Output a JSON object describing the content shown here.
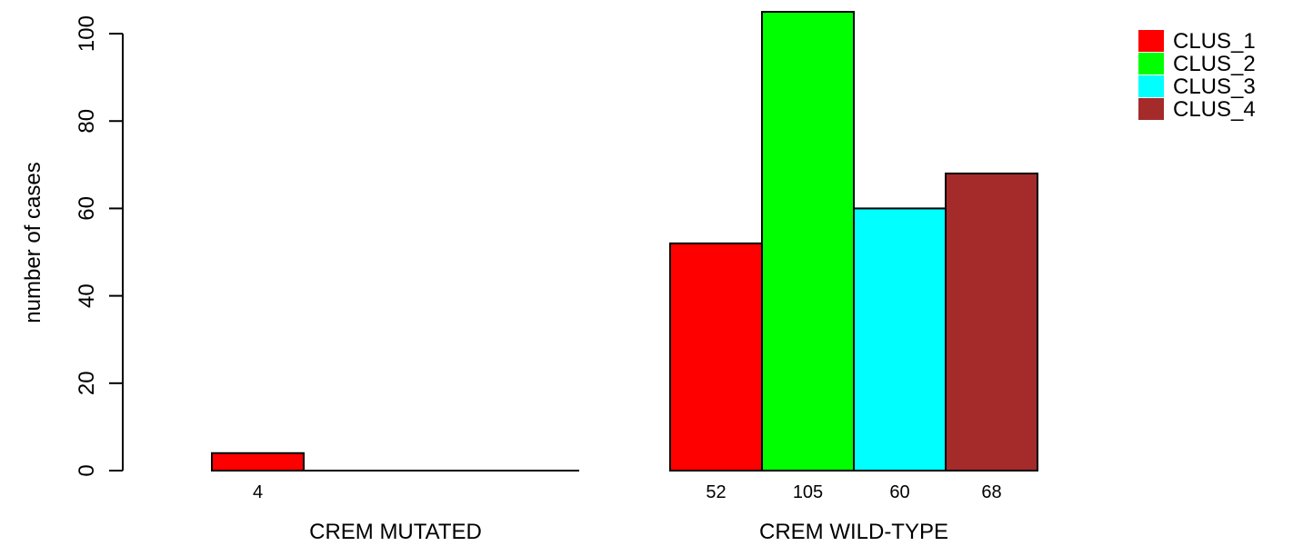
{
  "chart_data": {
    "type": "bar",
    "ylabel": "number of cases",
    "ylim": [
      0,
      105
    ],
    "yticks": [
      0,
      20,
      40,
      60,
      80,
      100
    ],
    "groups": [
      {
        "label": "CREM MUTATED",
        "values": [
          4,
          0,
          0,
          0
        ],
        "value_labels": [
          "4",
          "",
          "",
          ""
        ]
      },
      {
        "label": "CREM WILD-TYPE",
        "values": [
          52,
          105,
          60,
          68
        ],
        "value_labels": [
          "52",
          "105",
          "60",
          "68"
        ]
      }
    ],
    "series": [
      {
        "name": "CLUS_1",
        "color": "#ff0000"
      },
      {
        "name": "CLUS_2",
        "color": "#00ff00"
      },
      {
        "name": "CLUS_3",
        "color": "#00ffff"
      },
      {
        "name": "CLUS_4",
        "color": "#a52a2a"
      }
    ],
    "legend_position": "top-right"
  }
}
